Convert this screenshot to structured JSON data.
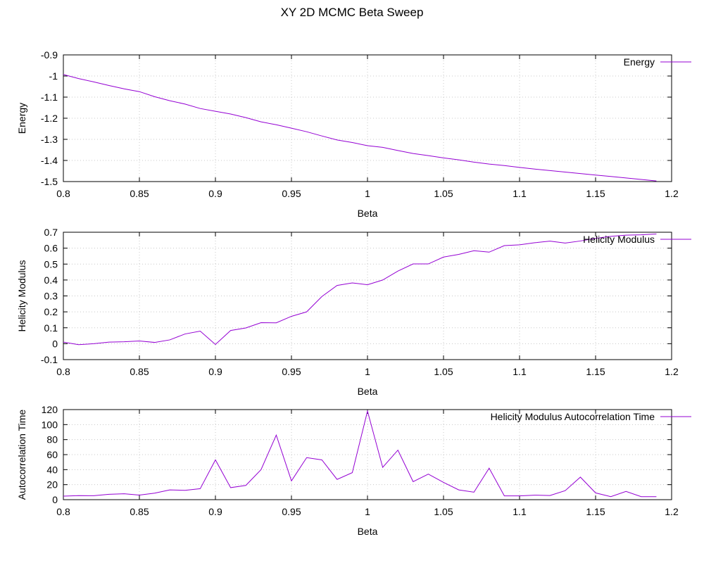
{
  "figure": {
    "title": "XY 2D MCMC Beta Sweep",
    "line_color": "#9400d3"
  },
  "chart_data": [
    {
      "type": "line",
      "xlabel": "Beta",
      "ylabel": "Energy",
      "xlim": [
        0.8,
        1.2
      ],
      "ylim": [
        -1.5,
        -0.9
      ],
      "xticks": [
        0.8,
        0.85,
        0.9,
        0.95,
        1,
        1.05,
        1.1,
        1.15,
        1.2
      ],
      "xtick_labels": [
        "0.8",
        "0.85",
        "0.9",
        "0.95",
        "1",
        "1.05",
        "1.1",
        "1.15",
        "1.2"
      ],
      "yticks": [
        -1.5,
        -1.4,
        -1.3,
        -1.2,
        -1.1,
        -1,
        -0.9
      ],
      "ytick_labels": [
        "-1.5",
        "-1.4",
        "-1.3",
        "-1.2",
        "-1.1",
        "-1",
        "-0.9"
      ],
      "grid": true,
      "legend": "top-right",
      "series": [
        {
          "name": "Energy",
          "x": [
            0.8,
            0.81,
            0.82,
            0.83,
            0.84,
            0.85,
            0.86,
            0.87,
            0.88,
            0.89,
            0.9,
            0.91,
            0.92,
            0.93,
            0.94,
            0.95,
            0.96,
            0.97,
            0.98,
            0.99,
            1.0,
            1.01,
            1.02,
            1.03,
            1.04,
            1.05,
            1.06,
            1.07,
            1.08,
            1.09,
            1.1,
            1.11,
            1.12,
            1.13,
            1.14,
            1.15,
            1.16,
            1.17,
            1.18,
            1.19
          ],
          "values": [
            -0.993,
            -1.012,
            -1.028,
            -1.045,
            -1.061,
            -1.074,
            -1.098,
            -1.117,
            -1.133,
            -1.154,
            -1.167,
            -1.18,
            -1.197,
            -1.217,
            -1.231,
            -1.247,
            -1.264,
            -1.284,
            -1.303,
            -1.315,
            -1.33,
            -1.338,
            -1.353,
            -1.367,
            -1.377,
            -1.388,
            -1.397,
            -1.408,
            -1.417,
            -1.424,
            -1.433,
            -1.441,
            -1.448,
            -1.455,
            -1.462,
            -1.469,
            -1.476,
            -1.483,
            -1.49,
            -1.497
          ]
        }
      ]
    },
    {
      "type": "line",
      "xlabel": "Beta",
      "ylabel": "Helicity Modulus",
      "xlim": [
        0.8,
        1.2
      ],
      "ylim": [
        -0.1,
        0.7
      ],
      "xticks": [
        0.8,
        0.85,
        0.9,
        0.95,
        1,
        1.05,
        1.1,
        1.15,
        1.2
      ],
      "xtick_labels": [
        "0.8",
        "0.85",
        "0.9",
        "0.95",
        "1",
        "1.05",
        "1.1",
        "1.15",
        "1.2"
      ],
      "yticks": [
        -0.1,
        0,
        0.1,
        0.2,
        0.3,
        0.4,
        0.5,
        0.6,
        0.7
      ],
      "ytick_labels": [
        "-0.1",
        "0",
        "0.1",
        "0.2",
        "0.3",
        "0.4",
        "0.5",
        "0.6",
        "0.7"
      ],
      "grid": true,
      "legend": "top-right",
      "series": [
        {
          "name": "Helicity Modulus",
          "x": [
            0.8,
            0.81,
            0.82,
            0.83,
            0.84,
            0.85,
            0.86,
            0.87,
            0.88,
            0.89,
            0.9,
            0.91,
            0.92,
            0.93,
            0.94,
            0.95,
            0.96,
            0.97,
            0.98,
            0.99,
            1.0,
            1.01,
            1.02,
            1.03,
            1.04,
            1.05,
            1.06,
            1.07,
            1.08,
            1.09,
            1.1,
            1.11,
            1.12,
            1.13,
            1.14,
            1.15,
            1.16,
            1.17,
            1.18,
            1.19
          ],
          "values": [
            0.01,
            -0.006,
            0.0,
            0.01,
            0.012,
            0.017,
            0.008,
            0.024,
            0.061,
            0.079,
            -0.005,
            0.083,
            0.099,
            0.132,
            0.131,
            0.172,
            0.2,
            0.296,
            0.366,
            0.382,
            0.37,
            0.4,
            0.456,
            0.501,
            0.501,
            0.544,
            0.561,
            0.584,
            0.575,
            0.616,
            0.621,
            0.634,
            0.644,
            0.632,
            0.645,
            0.662,
            0.674,
            0.682,
            0.684,
            0.689
          ]
        }
      ]
    },
    {
      "type": "line",
      "xlabel": "Beta",
      "ylabel": "Autocorrelation Time",
      "xlim": [
        0.8,
        1.2
      ],
      "ylim": [
        0,
        120
      ],
      "xticks": [
        0.8,
        0.85,
        0.9,
        0.95,
        1,
        1.05,
        1.1,
        1.15,
        1.2
      ],
      "xtick_labels": [
        "0.8",
        "0.85",
        "0.9",
        "0.95",
        "1",
        "1.05",
        "1.1",
        "1.15",
        "1.2"
      ],
      "yticks": [
        0,
        20,
        40,
        60,
        80,
        100,
        120
      ],
      "ytick_labels": [
        "0",
        "20",
        "40",
        "60",
        "80",
        "100",
        "120"
      ],
      "grid": true,
      "legend": "top-right",
      "series": [
        {
          "name": "Helicity Modulus Autocorrelation Time",
          "x": [
            0.8,
            0.81,
            0.82,
            0.83,
            0.84,
            0.85,
            0.86,
            0.87,
            0.88,
            0.89,
            0.9,
            0.91,
            0.92,
            0.93,
            0.94,
            0.95,
            0.96,
            0.97,
            0.98,
            0.99,
            1.0,
            1.01,
            1.02,
            1.03,
            1.04,
            1.05,
            1.06,
            1.07,
            1.08,
            1.09,
            1.1,
            1.11,
            1.12,
            1.13,
            1.14,
            1.15,
            1.16,
            1.17,
            1.18,
            1.19
          ],
          "values": [
            4.7,
            5.4,
            5.3,
            7.1,
            7.9,
            6.1,
            8.7,
            13.0,
            12.4,
            14.6,
            53.0,
            16.0,
            19.0,
            40.0,
            86.0,
            25.0,
            56.0,
            53.0,
            27.0,
            36.0,
            118.0,
            43.0,
            66.0,
            24.0,
            34.0,
            23.0,
            13.0,
            10.0,
            42.0,
            5.0,
            5.0,
            6.0,
            5.5,
            12.0,
            30.0,
            9.0,
            4.0,
            11.0,
            4.0,
            4.0
          ]
        }
      ]
    }
  ]
}
